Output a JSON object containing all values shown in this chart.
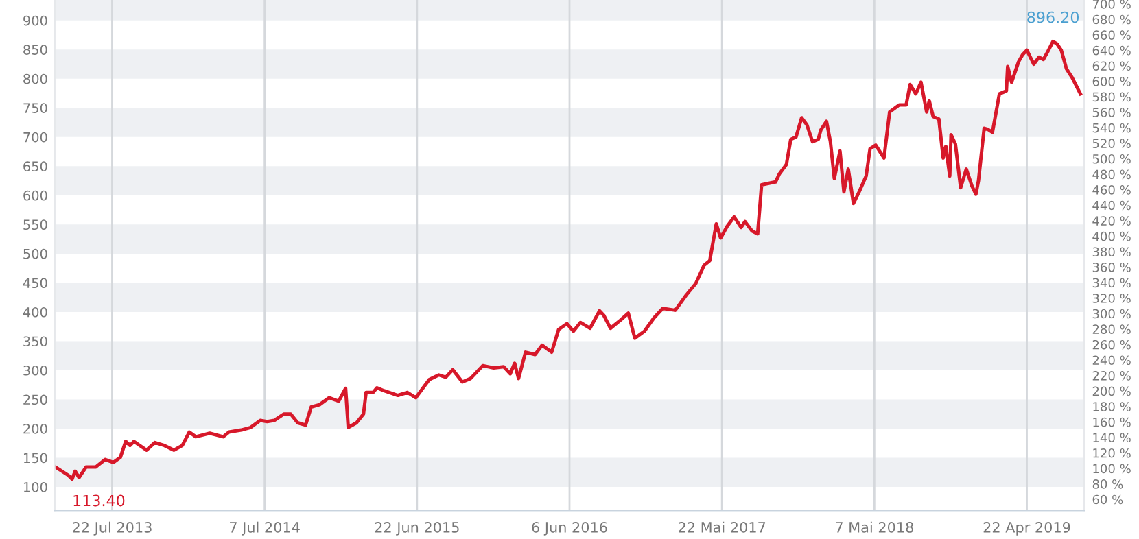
{
  "chart_data": {
    "type": "line",
    "x": [
      "2013-03-12",
      "2013-04-12",
      "2013-04-21",
      "2013-04-28",
      "2013-05-07",
      "2013-05-23",
      "2013-06-14",
      "2013-07-06",
      "2013-07-25",
      "2013-08-10",
      "2013-08-22",
      "2013-09-01",
      "2013-09-10",
      "2013-10-09",
      "2013-10-28",
      "2013-11-19",
      "2013-12-11",
      "2013-12-30",
      "2014-01-15",
      "2014-01-30",
      "2014-03-03",
      "2014-04-03",
      "2014-04-16",
      "2014-05-17",
      "2014-06-05",
      "2014-06-27",
      "2014-07-13",
      "2014-07-29",
      "2014-08-20",
      "2014-09-05",
      "2014-09-21",
      "2014-10-09",
      "2014-10-22",
      "2014-11-10",
      "2014-12-02",
      "2014-12-24",
      "2015-01-09",
      "2015-01-15",
      "2015-02-03",
      "2015-02-19",
      "2015-02-25",
      "2015-03-13",
      "2015-03-22",
      "2015-04-07",
      "2015-05-09",
      "2015-05-31",
      "2015-06-19",
      "2015-07-20",
      "2015-08-11",
      "2015-08-27",
      "2015-09-12",
      "2015-10-04",
      "2015-10-23",
      "2015-11-20",
      "2015-12-15",
      "2016-01-07",
      "2016-01-22",
      "2016-02-01",
      "2016-02-10",
      "2016-02-26",
      "2016-03-19",
      "2016-04-04",
      "2016-04-26",
      "2016-05-12",
      "2016-05-31",
      "2016-06-15",
      "2016-07-01",
      "2016-07-23",
      "2016-08-14",
      "2016-08-24",
      "2016-09-08",
      "2016-10-01",
      "2016-10-19",
      "2016-11-03",
      "2016-11-25",
      "2016-12-17",
      "2017-01-06",
      "2017-02-04",
      "2017-03-01",
      "2017-03-23",
      "2017-04-11",
      "2017-04-24",
      "2017-05-09",
      "2017-05-19",
      "2017-06-03",
      "2017-06-19",
      "2017-07-05",
      "2017-07-14",
      "2017-07-30",
      "2017-08-12",
      "2017-08-21",
      "2017-09-22",
      "2017-10-01",
      "2017-10-17",
      "2017-10-27",
      "2017-11-08",
      "2017-11-21",
      "2017-12-03",
      "2017-12-16",
      "2017-12-29",
      "2018-01-04",
      "2018-01-17",
      "2018-01-26",
      "2018-02-04",
      "2018-02-17",
      "2018-02-26",
      "2018-03-08",
      "2018-03-20",
      "2018-04-02",
      "2018-04-18",
      "2018-04-27",
      "2018-05-10",
      "2018-05-29",
      "2018-06-11",
      "2018-07-03",
      "2018-07-19",
      "2018-07-28",
      "2018-08-10",
      "2018-08-22",
      "2018-09-04",
      "2018-09-10",
      "2018-09-19",
      "2018-10-02",
      "2018-10-12",
      "2018-10-18",
      "2018-10-27",
      "2018-10-30",
      "2018-11-09",
      "2018-11-21",
      "2018-12-04",
      "2018-12-17",
      "2018-12-26",
      "2019-01-01",
      "2019-01-14",
      "2019-01-23",
      "2019-02-02",
      "2019-02-18",
      "2019-03-06",
      "2019-03-09",
      "2019-03-18",
      "2019-04-03",
      "2019-04-12",
      "2019-04-22",
      "2019-05-08",
      "2019-05-20",
      "2019-05-30",
      "2019-06-08",
      "2019-06-21",
      "2019-06-30",
      "2019-07-10",
      "2019-07-22",
      "2019-08-04",
      "2019-08-23"
    ],
    "series": [
      {
        "color": "#d7182a",
        "values": [
          135,
          120,
          113.4,
          127,
          116,
          134,
          134,
          147,
          142,
          151,
          178,
          171,
          178,
          163,
          176,
          171,
          163,
          171,
          194,
          186,
          192,
          186,
          194,
          198,
          202,
          214,
          212,
          214,
          225,
          225,
          210,
          206,
          237,
          241,
          253,
          247,
          269,
          202,
          210,
          225,
          262,
          262,
          270,
          265,
          257,
          262,
          253,
          284,
          292,
          288,
          301,
          280,
          286,
          308,
          304,
          306,
          294,
          312,
          286,
          331,
          327,
          343,
          331,
          370,
          380,
          367,
          382,
          372,
          402,
          394,
          372,
          386,
          398,
          355,
          367,
          390,
          406,
          403,
          429,
          449,
          480,
          488,
          551,
          527,
          547,
          563,
          545,
          555,
          539,
          534,
          618,
          623,
          637,
          653,
          696,
          700,
          733,
          721,
          692,
          696,
          712,
          727,
          692,
          629,
          676,
          606,
          645,
          586,
          606,
          633,
          680,
          686,
          664,
          743,
          755,
          755,
          790,
          774,
          794,
          743,
          762,
          735,
          731,
          664,
          684,
          633,
          704,
          688,
          613,
          645,
          616,
          602,
          625,
          715,
          713,
          708,
          774,
          779,
          821,
          794,
          829,
          841,
          849,
          825,
          837,
          833,
          845,
          864,
          860,
          849,
          817,
          802,
          774
        ]
      }
    ],
    "xlim": [
      "2013-03-12",
      "2019-09-01"
    ],
    "xticks": [
      {
        "value": "2013-07-22",
        "label": "22 Jul 2013"
      },
      {
        "value": "2014-07-07",
        "label": "7 Jul 2014"
      },
      {
        "value": "2015-06-22",
        "label": "22 Jun 2015"
      },
      {
        "value": "2016-06-06",
        "label": "6 Jun 2016"
      },
      {
        "value": "2017-05-22",
        "label": "22 Mai 2017"
      },
      {
        "value": "2018-05-07",
        "label": "7 Mai 2018"
      },
      {
        "value": "2019-04-22",
        "label": "22 Apr 2019"
      }
    ],
    "ylim": [
      60,
      935
    ],
    "yticks": [
      100,
      150,
      200,
      250,
      300,
      350,
      400,
      450,
      500,
      550,
      600,
      650,
      700,
      750,
      800,
      850,
      900
    ],
    "y2lim": [
      46,
      705
    ],
    "y2ticks": [
      {
        "value": 60,
        "label": "60 %"
      },
      {
        "value": 80,
        "label": "80 %"
      },
      {
        "value": 100,
        "label": "100 %"
      },
      {
        "value": 120,
        "label": "120 %"
      },
      {
        "value": 140,
        "label": "140 %"
      },
      {
        "value": 160,
        "label": "160 %"
      },
      {
        "value": 180,
        "label": "180 %"
      },
      {
        "value": 200,
        "label": "200 %"
      },
      {
        "value": 220,
        "label": "220 %"
      },
      {
        "value": 240,
        "label": "240 %"
      },
      {
        "value": 260,
        "label": "260 %"
      },
      {
        "value": 280,
        "label": "280 %"
      },
      {
        "value": 300,
        "label": "300 %"
      },
      {
        "value": 320,
        "label": "320 %"
      },
      {
        "value": 340,
        "label": "340 %"
      },
      {
        "value": 360,
        "label": "360 %"
      },
      {
        "value": 380,
        "label": "380 %"
      },
      {
        "value": 400,
        "label": "400 %"
      },
      {
        "value": 420,
        "label": "420 %"
      },
      {
        "value": 440,
        "label": "440 %"
      },
      {
        "value": 460,
        "label": "460 %"
      },
      {
        "value": 480,
        "label": "480 %"
      },
      {
        "value": 500,
        "label": "500 %"
      },
      {
        "value": 520,
        "label": "520 %"
      },
      {
        "value": 540,
        "label": "540 %"
      },
      {
        "value": 560,
        "label": "560 %"
      },
      {
        "value": 580,
        "label": "580 %"
      },
      {
        "value": 600,
        "label": "600 %"
      },
      {
        "value": 620,
        "label": "620 %"
      },
      {
        "value": 640,
        "label": "640 %"
      },
      {
        "value": 660,
        "label": "660 %"
      },
      {
        "value": 680,
        "label": "680 %"
      },
      {
        "value": 700,
        "label": "700 %"
      }
    ],
    "annotations": [
      {
        "text": "113.40",
        "x": "2013-04-21",
        "y": 113.4
      },
      {
        "text": "896.20",
        "x": "2019-06-21",
        "y": 864
      }
    ],
    "grid": true,
    "marker": "none",
    "line_style": "solid"
  }
}
